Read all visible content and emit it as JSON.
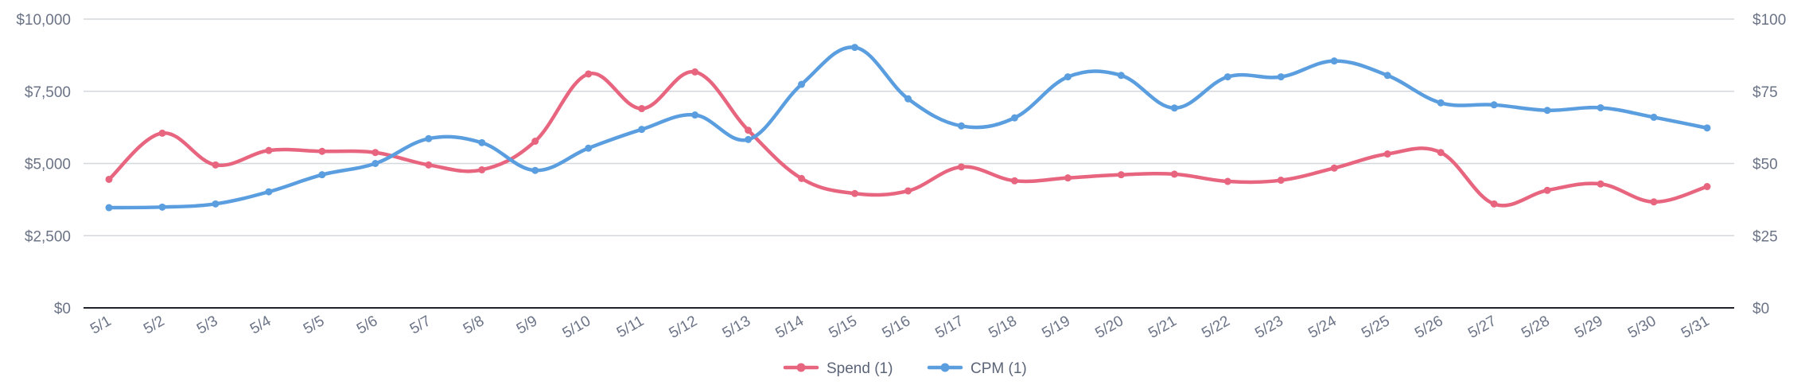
{
  "chart_data": {
    "type": "line",
    "categories": [
      "5/1",
      "5/2",
      "5/3",
      "5/4",
      "5/5",
      "5/6",
      "5/7",
      "5/8",
      "5/9",
      "5/10",
      "5/11",
      "5/12",
      "5/13",
      "5/14",
      "5/15",
      "5/16",
      "5/17",
      "5/18",
      "5/19",
      "5/20",
      "5/21",
      "5/22",
      "5/23",
      "5/24",
      "5/25",
      "5/26",
      "5/27",
      "5/28",
      "5/29",
      "5/30",
      "5/31"
    ],
    "y_left": {
      "ticks": [
        "$0",
        "$2,500",
        "$5,000",
        "$7,500",
        "$10,000"
      ],
      "ylim": [
        0,
        10000
      ]
    },
    "y_right": {
      "ticks": [
        "$0",
        "$25",
        "$50",
        "$75",
        "$100"
      ],
      "ylim": [
        0,
        100
      ]
    },
    "series": [
      {
        "name": "Spend (1)",
        "axis": "left",
        "color": "#e8657f",
        "values": [
          4450,
          6050,
          4950,
          5450,
          5420,
          5380,
          4950,
          4780,
          5770,
          8100,
          6900,
          8170,
          6150,
          4480,
          3960,
          4050,
          4880,
          4400,
          4500,
          4610,
          4630,
          4380,
          4420,
          4840,
          5330,
          5380,
          3600,
          4070,
          4290,
          3670,
          4200
        ]
      },
      {
        "name": "CPM (1)",
        "axis": "right",
        "color": "#5a9ee0",
        "values": [
          34.7,
          34.9,
          36.0,
          40.2,
          46.1,
          50.0,
          58.6,
          57.2,
          47.6,
          55.3,
          61.8,
          66.8,
          58.3,
          77.4,
          90.2,
          72.4,
          63.0,
          65.8,
          80.0,
          80.5,
          69.2,
          80.0,
          80.0,
          85.5,
          80.5,
          71.0,
          70.3,
          68.4,
          69.3,
          66.0,
          62.3
        ]
      }
    ],
    "legend": "bottom-center",
    "grid": true
  }
}
